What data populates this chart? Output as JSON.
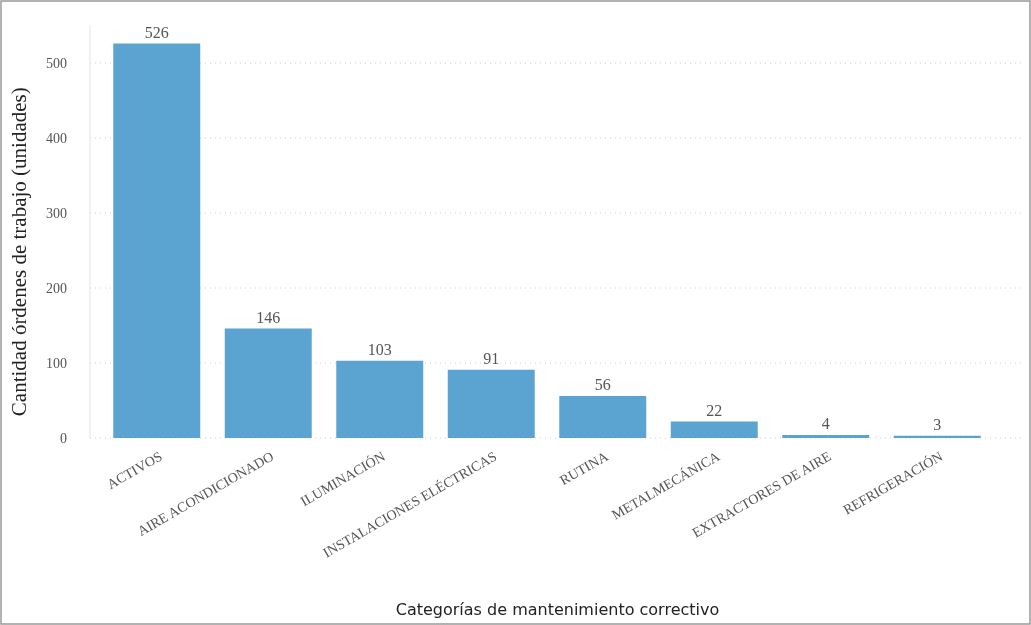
{
  "chart_data": {
    "type": "bar",
    "xlabel": "Categorías de mantenimiento correctivo",
    "ylabel": "Cantidad órdenes de trabajo (unidades)",
    "categories": [
      "ACTIVOS",
      "AIRE ACONDICIONADO",
      "ILUMINACIÓN",
      "INSTALACIONES ELÉCTRICAS",
      "RUTINA",
      "METALMECÁNICA",
      "EXTRACTORES DE AIRE",
      "REFRIGERACIÓN"
    ],
    "values": [
      526,
      146,
      103,
      91,
      56,
      22,
      4,
      3
    ],
    "color": "#5ba3d0",
    "ylim": [
      0,
      550
    ],
    "yticks": [
      0,
      100,
      200,
      300,
      400,
      500
    ],
    "grid": "y",
    "data_labels": true
  }
}
